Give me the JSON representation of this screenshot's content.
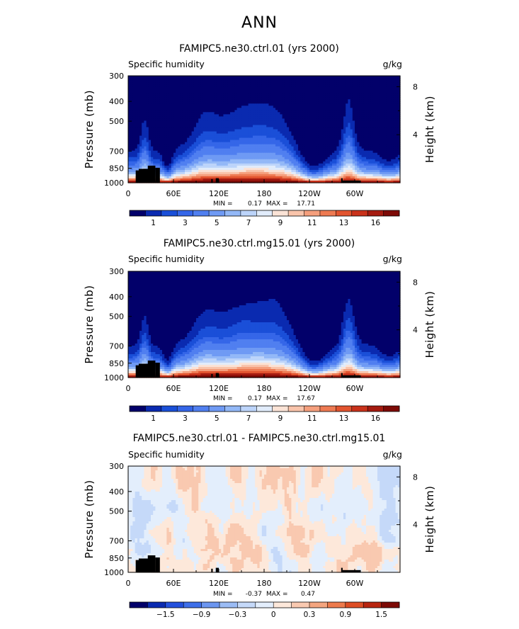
{
  "figure": {
    "title": "ANN"
  },
  "colors": {
    "absolute_palette": [
      "#02006a",
      "#0a2ab0",
      "#1a4fd8",
      "#3566e8",
      "#507ff0",
      "#6f9af4",
      "#93b8f7",
      "#bcd4fa",
      "#e1ecfb",
      "#fbe3d6",
      "#f9c4ab",
      "#f59f7d",
      "#ee7a52",
      "#e2542f",
      "#c9321b",
      "#a51b10",
      "#7d0a06"
    ],
    "diff_palette": [
      "#02006a",
      "#0a2ab0",
      "#2350dc",
      "#3e6fe9",
      "#6c96f0",
      "#9bbcf5",
      "#c5d9f9",
      "#e3eefc",
      "#fde8da",
      "#f9c9b0",
      "#f4a57f",
      "#ed7a4c",
      "#dd4d24",
      "#b8250f",
      "#7d0a06"
    ],
    "land": "#000000"
  },
  "chart_data": [
    {
      "type": "heatmap",
      "panel_title": "FAMIPC5.ne30.ctrl.01 (yrs 2000)",
      "field_label": "Specific humidity",
      "units_label": "g/kg",
      "ylabel": "Pressure (mb)",
      "right_label": "Height (km)",
      "xticks": [
        "0",
        "60E",
        "120E",
        "180",
        "120W",
        "60W"
      ],
      "x_lon": [
        0,
        60,
        120,
        180,
        240,
        300
      ],
      "xlim": [
        0,
        360
      ],
      "yticks": [
        "300",
        "400",
        "500",
        "700",
        "850",
        "1000"
      ],
      "y_p": [
        300,
        400,
        500,
        700,
        850,
        1000
      ],
      "ylim": [
        300,
        1000
      ],
      "right_ticks": [
        "8",
        "4"
      ],
      "right_km": [
        8,
        4
      ],
      "min_label": "MIN =",
      "min_value": "0.17",
      "max_label": "MAX =",
      "max_value": "17.71",
      "colorbar_labels": [
        "1",
        "3",
        "5",
        "7",
        "9",
        "11",
        "13",
        "16"
      ],
      "levels": [
        0.5,
        1,
        1.5,
        2,
        3,
        4,
        5,
        6,
        7,
        8,
        9,
        10,
        11,
        12,
        13,
        14,
        16
      ]
    },
    {
      "type": "heatmap",
      "panel_title": "FAMIPC5.ne30.ctrl.mg15.01 (yrs 2000)",
      "field_label": "Specific humidity",
      "units_label": "g/kg",
      "ylabel": "Pressure (mb)",
      "right_label": "Height (km)",
      "xticks": [
        "0",
        "60E",
        "120E",
        "180",
        "120W",
        "60W"
      ],
      "x_lon": [
        0,
        60,
        120,
        180,
        240,
        300
      ],
      "xlim": [
        0,
        360
      ],
      "yticks": [
        "300",
        "400",
        "500",
        "700",
        "850",
        "1000"
      ],
      "y_p": [
        300,
        400,
        500,
        700,
        850,
        1000
      ],
      "ylim": [
        300,
        1000
      ],
      "right_ticks": [
        "8",
        "4"
      ],
      "right_km": [
        8,
        4
      ],
      "min_label": "MIN =",
      "min_value": "0.17",
      "max_label": "MAX =",
      "max_value": "17.67",
      "colorbar_labels": [
        "1",
        "3",
        "5",
        "7",
        "9",
        "11",
        "13",
        "16"
      ],
      "levels": [
        0.5,
        1,
        1.5,
        2,
        3,
        4,
        5,
        6,
        7,
        8,
        9,
        10,
        11,
        12,
        13,
        14,
        16
      ]
    },
    {
      "type": "heatmap",
      "panel_title": "FAMIPC5.ne30.ctrl.01 - FAMIPC5.ne30.ctrl.mg15.01",
      "field_label": "Specific humidity",
      "units_label": "g/kg",
      "ylabel": "Pressure (mb)",
      "right_label": "Height (km)",
      "xticks": [
        "0",
        "60E",
        "120E",
        "180",
        "120W",
        "60W"
      ],
      "x_lon": [
        0,
        60,
        120,
        180,
        240,
        300
      ],
      "xlim": [
        0,
        360
      ],
      "yticks": [
        "300",
        "400",
        "500",
        "700",
        "850",
        "1000"
      ],
      "y_p": [
        300,
        400,
        500,
        700,
        850,
        1000
      ],
      "ylim": [
        300,
        1000
      ],
      "right_ticks": [
        "8",
        "4"
      ],
      "right_km": [
        8,
        4
      ],
      "min_label": "MIN =",
      "min_value": "-0.37",
      "max_label": "MAX =",
      "max_value": "0.47",
      "colorbar_labels": [
        "−1.5",
        "−0.9",
        "−0.3",
        "0",
        "0.3",
        "0.9",
        "1.5"
      ],
      "levels": [
        -1.8,
        -1.5,
        -1.2,
        -0.9,
        -0.6,
        -0.3,
        -0.1,
        0,
        0.1,
        0.3,
        0.6,
        0.9,
        1.2,
        1.5
      ]
    }
  ]
}
